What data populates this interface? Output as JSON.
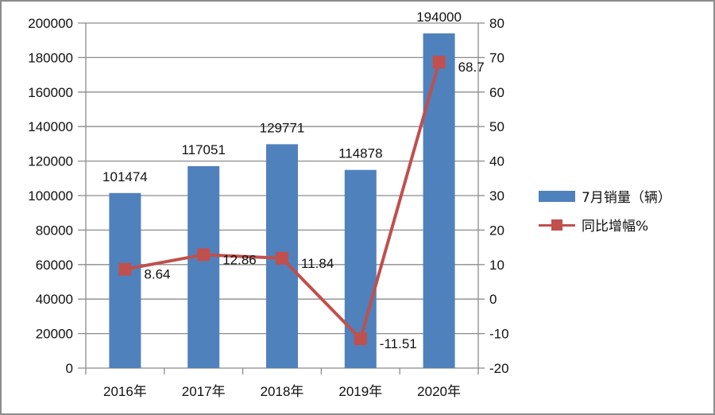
{
  "chart_data": {
    "type": "bar",
    "categories": [
      "2016年",
      "2017年",
      "2018年",
      "2019年",
      "2020年"
    ],
    "series": [
      {
        "name": "7月销量（辆）",
        "type": "bar",
        "axis": "left",
        "color": "#4f81bd",
        "values": [
          101474,
          117051,
          129771,
          114878,
          194000
        ]
      },
      {
        "name": "同比增幅%",
        "type": "line",
        "axis": "right",
        "color": "#c0504d",
        "marker": "square",
        "values": [
          8.64,
          12.86,
          11.84,
          -11.51,
          68.7
        ]
      }
    ],
    "y_left": {
      "range": [
        0,
        200000
      ],
      "ticks": [
        0,
        20000,
        40000,
        60000,
        80000,
        100000,
        120000,
        140000,
        160000,
        180000,
        200000
      ]
    },
    "y_right": {
      "range": [
        -20,
        80
      ],
      "ticks": [
        -20,
        -10,
        0,
        10,
        20,
        30,
        40,
        50,
        60,
        70,
        80
      ]
    },
    "grid": true,
    "legend_placement": "right",
    "bar_labels": [
      "101474",
      "117051",
      "129771",
      "114878",
      "194000"
    ],
    "line_labels": [
      "8.64",
      "12.86",
      "11.84",
      "-11.51",
      "68.7"
    ]
  }
}
